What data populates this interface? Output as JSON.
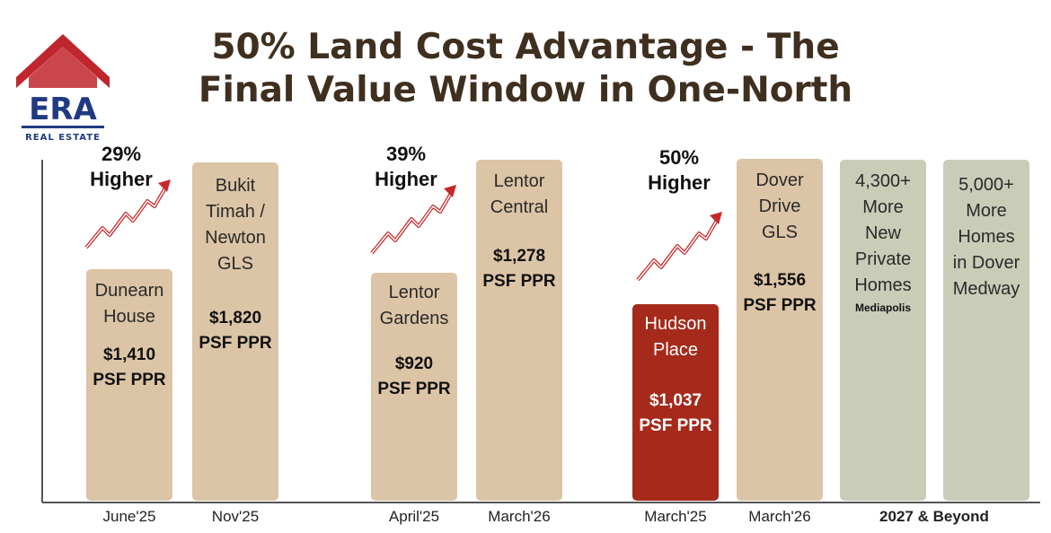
{
  "logo": {
    "brand": "ERA",
    "tagline": "REAL ESTATE"
  },
  "title_line1": "50% Land Cost Advantage - The",
  "title_line2": "Final Value Window in One-North",
  "chart_data": {
    "type": "bar",
    "title": "50% Land Cost Advantage - The Final Value Window in One-North",
    "unit": "PSF PPR",
    "categories": [
      "June'25",
      "Nov'25",
      "April'25",
      "March'26",
      "March'25",
      "March'26",
      "2027 & Beyond",
      "2027 & Beyond"
    ],
    "bars": [
      {
        "name": "Dunearn\nHouse",
        "value": 1410,
        "value_label": "$1,410",
        "unit_label": "PSF PPR",
        "x_label": "June'25",
        "color": "#dcc4a6"
      },
      {
        "name": "Bukit\nTimah /\nNewton\nGLS",
        "value": 1820,
        "value_label": "$1,820",
        "unit_label": "PSF PPR",
        "x_label": "Nov'25",
        "color": "#dcc4a6"
      },
      {
        "name": "Lentor\nGardens",
        "value": 920,
        "value_label": "$920",
        "unit_label": "PSF PPR",
        "x_label": "April'25",
        "color": "#dcc4a6"
      },
      {
        "name": "Lentor\nCentral",
        "value": 1278,
        "value_label": "$1,278",
        "unit_label": "PSF PPR",
        "x_label": "March'26",
        "color": "#dcc4a6"
      },
      {
        "name": "Hudson\nPlace",
        "value": 1037,
        "value_label": "$1,037",
        "unit_label": "PSF PPR",
        "x_label": "March'25",
        "color": "#a52a1c",
        "highlight": true
      },
      {
        "name": "Dover\nDrive\nGLS",
        "value": 1556,
        "value_label": "$1,556",
        "unit_label": "PSF PPR",
        "x_label": "March'26",
        "color": "#dcc4a6"
      },
      {
        "name": "4,300+\nMore\nNew\nPrivate\nHomes",
        "sub": "Mediapolis",
        "x_label": "2027 & Beyond",
        "color": "#c9cdb8"
      },
      {
        "name": "5,000+\nMore\nHomes\nin Dover\nMedway",
        "x_label": "2027 & Beyond",
        "color": "#c9cdb8"
      }
    ],
    "annotations": [
      {
        "text_line1": "29%",
        "text_line2": "Higher"
      },
      {
        "text_line1": "39%",
        "text_line2": "Higher"
      },
      {
        "text_line1": "50%",
        "text_line2": "Higher"
      }
    ],
    "x_labels": [
      "June'25",
      "Nov'25",
      "April'25",
      "March'26",
      "March'25",
      "March'26",
      "2027 & Beyond"
    ]
  },
  "colors": {
    "accent": "#a52a1c",
    "bar": "#dcc4a6",
    "future": "#c9cdb8",
    "title": "#3f2f1f",
    "arrow": "#c62828"
  }
}
